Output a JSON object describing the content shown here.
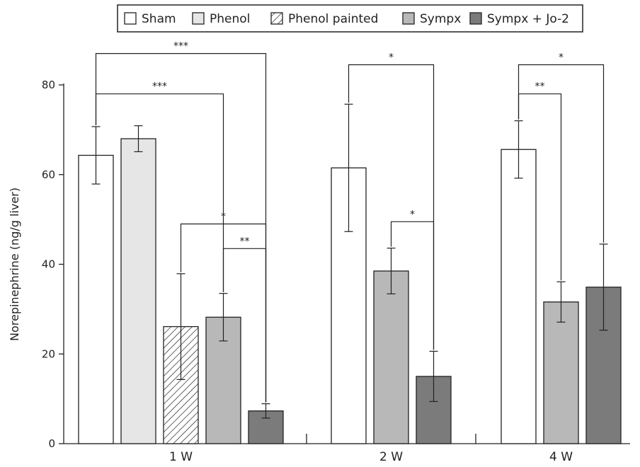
{
  "chart_data": {
    "type": "bar",
    "ylabel": "Norepinephrine (ng/g liver)",
    "ylim": [
      0,
      80
    ],
    "yticks": [
      0,
      20,
      40,
      60,
      80
    ],
    "legend_position": "top",
    "legend": [
      {
        "name": "Sham",
        "color": "#ffffff",
        "pattern": "none"
      },
      {
        "name": "Phenol",
        "color": "#e6e6e6",
        "pattern": "none"
      },
      {
        "name": "Phenol painted",
        "color": "#ffffff",
        "pattern": "hatch"
      },
      {
        "name": "Sympx",
        "color": "#b8b8b8",
        "pattern": "none"
      },
      {
        "name": "Sympx + Jo-2",
        "color": "#7b7b7b",
        "pattern": "none"
      }
    ],
    "groups": [
      {
        "label": "1 W",
        "bars": [
          {
            "series": "Sham",
            "value": 64.3,
            "err": 6.4
          },
          {
            "series": "Phenol",
            "value": 68.0,
            "err": 2.9
          },
          {
            "series": "Phenol painted",
            "value": 26.1,
            "err": 11.8
          },
          {
            "series": "Sympx",
            "value": 28.2,
            "err": 5.3
          },
          {
            "series": "Sympx + Jo-2",
            "value": 7.3,
            "err": 1.6
          }
        ]
      },
      {
        "label": "2 W",
        "bars": [
          {
            "series": "Sham",
            "value": 61.5,
            "err": 14.2
          },
          {
            "series": "Sympx",
            "value": 38.5,
            "err": 5.1
          },
          {
            "series": "Sympx + Jo-2",
            "value": 15.0,
            "err": 5.6
          }
        ]
      },
      {
        "label": "4 W",
        "bars": [
          {
            "series": "Sham",
            "value": 65.6,
            "err": 6.4
          },
          {
            "series": "Sympx",
            "value": 31.6,
            "err": 4.5
          },
          {
            "series": "Sympx + Jo-2",
            "value": 34.9,
            "err": 9.6
          }
        ]
      }
    ],
    "significance": [
      {
        "group": 0,
        "from": 0,
        "to": 4,
        "level": 87,
        "label": "***"
      },
      {
        "group": 0,
        "from": 0,
        "to": 3,
        "level": 78,
        "label": "***"
      },
      {
        "group": 0,
        "from": 2,
        "to": 4,
        "level": 49,
        "label": "*"
      },
      {
        "group": 0,
        "from": 3,
        "to": 4,
        "level": 43.5,
        "label": "**"
      },
      {
        "group": 1,
        "from": 0,
        "to": 2,
        "level": 84.5,
        "label": "*"
      },
      {
        "group": 1,
        "from": 1,
        "to": 2,
        "level": 49.5,
        "label": "*"
      },
      {
        "group": 2,
        "from": 0,
        "to": 2,
        "level": 84.5,
        "label": "*"
      },
      {
        "group": 2,
        "from": 0,
        "to": 1,
        "level": 78,
        "label": "**"
      }
    ]
  }
}
